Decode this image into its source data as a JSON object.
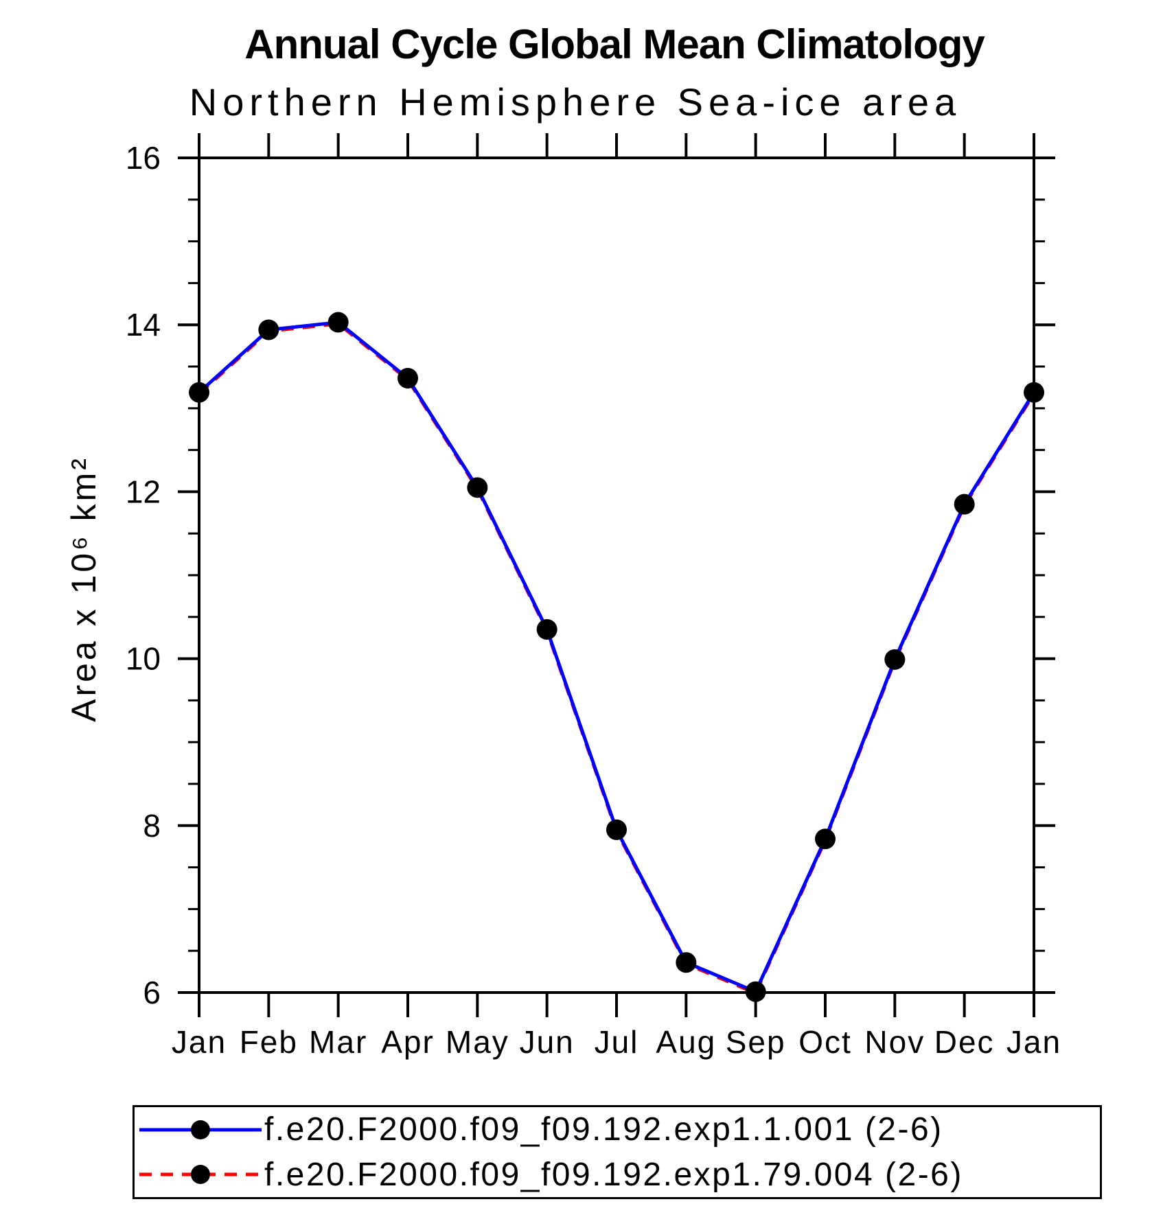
{
  "chart_data": {
    "type": "line",
    "title": "Annual Cycle Global Mean Climatology",
    "subtitle": "Northern Hemisphere Sea-ice area",
    "ylabel": "Area x 10⁶ km²",
    "xlabel": "",
    "categories": [
      "Jan",
      "Feb",
      "Mar",
      "Apr",
      "May",
      "Jun",
      "Jul",
      "Aug",
      "Sep",
      "Oct",
      "Nov",
      "Dec",
      "Jan"
    ],
    "series": [
      {
        "name": "f.e20.F2000.f09_f09.192.exp1.1.001 (2-6)",
        "color": "#0000ff",
        "style": "solid",
        "marker": "circle",
        "marker_color": "#000000",
        "values": [
          13.19,
          13.94,
          14.03,
          13.36,
          12.05,
          10.35,
          7.95,
          6.36,
          6.01,
          7.84,
          9.99,
          11.85,
          13.19
        ]
      },
      {
        "name": "f.e20.F2000.f09_f09.192.exp1.79.004 (2-6)",
        "color": "#ff0000",
        "style": "dashed",
        "marker": "circle",
        "marker_color": "#000000",
        "values": [
          13.19,
          13.94,
          14.03,
          13.36,
          12.05,
          10.35,
          7.95,
          6.36,
          6.01,
          7.84,
          9.99,
          11.85,
          13.19
        ]
      }
    ],
    "ylim": [
      6,
      16
    ],
    "yticks": [
      6,
      8,
      10,
      12,
      14,
      16
    ],
    "minor_tick_step": 0.5,
    "grid": false,
    "axis_color": "#000000",
    "legend_position": "bottom"
  }
}
